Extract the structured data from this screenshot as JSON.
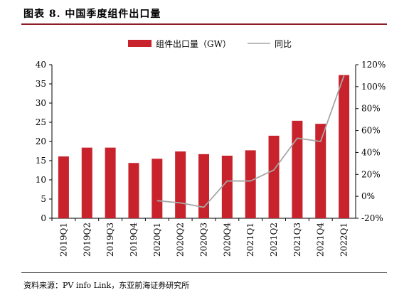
{
  "header": {
    "title": "图表 8.  中国季度组件出口量"
  },
  "footer": {
    "source": "资料来源：PV info Link，东亚前海证券研究所"
  },
  "colors": {
    "bar": "#c8232c",
    "line": "#a6a6a6",
    "accent_rule": "#8c1d26"
  },
  "chart_data": {
    "type": "bar",
    "categories": [
      "2019Q1",
      "2019Q2",
      "2019Q3",
      "2019Q4",
      "2020Q1",
      "2020Q2",
      "2020Q3",
      "2020Q4",
      "2021Q1",
      "2021Q2",
      "2021Q3",
      "2021Q4",
      "2022Q1"
    ],
    "series": [
      {
        "name": "组件出口量（GW）",
        "type": "bar",
        "axis": "left",
        "values": [
          16.1,
          18.4,
          18.4,
          14.4,
          15.5,
          17.4,
          16.7,
          16.3,
          17.7,
          21.5,
          25.4,
          24.6,
          37.3
        ]
      },
      {
        "name": "同比",
        "type": "line",
        "axis": "right",
        "values": [
          null,
          null,
          null,
          null,
          -4,
          -6,
          -10,
          14,
          14,
          24,
          53,
          50,
          110
        ]
      }
    ],
    "ylim": [
      0,
      40
    ],
    "yticks": [
      "0",
      "5",
      "10",
      "15",
      "20",
      "25",
      "30",
      "35",
      "40"
    ],
    "y2lim": [
      -20,
      120
    ],
    "y2ticks": [
      "-20%",
      "0%",
      "20%",
      "40%",
      "60%",
      "80%",
      "100%",
      "120%"
    ],
    "legend_position": "top",
    "grid": false
  }
}
